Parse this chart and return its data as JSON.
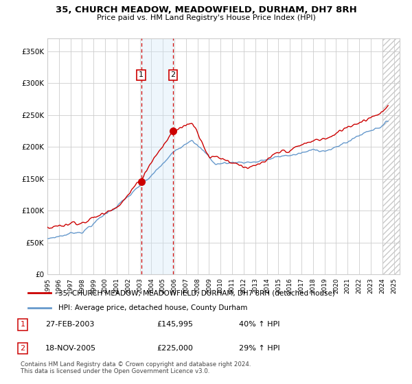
{
  "title": "35, CHURCH MEADOW, MEADOWFIELD, DURHAM, DH7 8RH",
  "subtitle": "Price paid vs. HM Land Registry's House Price Index (HPI)",
  "legend_line1": "35, CHURCH MEADOW, MEADOWFIELD, DURHAM, DH7 8RH (detached house)",
  "legend_line2": "HPI: Average price, detached house, County Durham",
  "footnote": "Contains HM Land Registry data © Crown copyright and database right 2024.\nThis data is licensed under the Open Government Licence v3.0.",
  "transaction1_date": "27-FEB-2003",
  "transaction1_price": "£145,995",
  "transaction1_hpi": "40% ↑ HPI",
  "transaction2_date": "18-NOV-2005",
  "transaction2_price": "£225,000",
  "transaction2_hpi": "29% ↑ HPI",
  "transaction1_x": 2003.12,
  "transaction1_y": 145995,
  "transaction2_x": 2005.88,
  "transaction2_y": 225000,
  "xlim": [
    1995,
    2025.5
  ],
  "ylim": [
    0,
    370000
  ],
  "yticks": [
    0,
    50000,
    100000,
    150000,
    200000,
    250000,
    300000,
    350000
  ],
  "hpi_color": "#6699cc",
  "price_color": "#cc0000",
  "shade_color": "#d0e8f8",
  "grid_color": "#cccccc",
  "bg_color": "#ffffff"
}
